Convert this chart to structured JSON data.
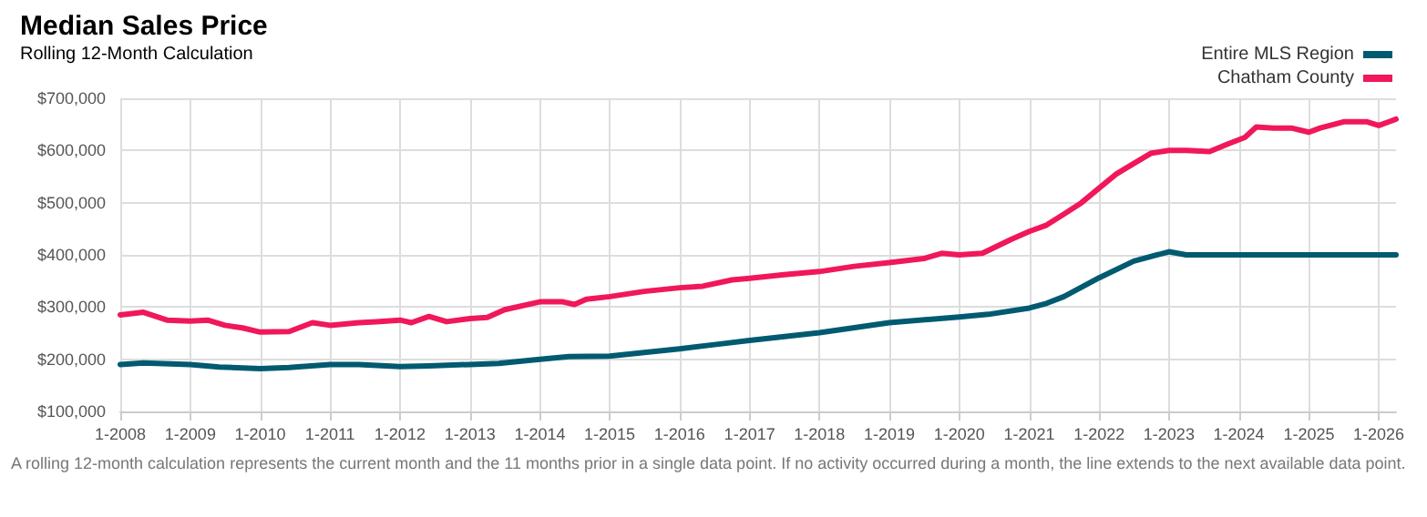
{
  "chart_data": {
    "type": "line",
    "title": "Median Sales Price",
    "subtitle": "Rolling 12-Month Calculation",
    "annotations": [
      "A rolling 12-month calculation represents the current month and the 11 months prior in a single data point. If no activity occurred during a month, the line extends to the next available data point."
    ],
    "legend": "top right",
    "grid": true,
    "marker": "none",
    "line_style": "solid",
    "xlim": [
      "2008-01",
      "2026-04"
    ],
    "xticks": [
      {
        "value": "2008-01",
        "label": "1-2008"
      },
      {
        "value": "2009-01",
        "label": "1-2009"
      },
      {
        "value": "2010-01",
        "label": "1-2010"
      },
      {
        "value": "2011-01",
        "label": "1-2011"
      },
      {
        "value": "2012-01",
        "label": "1-2012"
      },
      {
        "value": "2013-01",
        "label": "1-2013"
      },
      {
        "value": "2014-01",
        "label": "1-2014"
      },
      {
        "value": "2015-01",
        "label": "1-2015"
      },
      {
        "value": "2016-01",
        "label": "1-2016"
      },
      {
        "value": "2017-01",
        "label": "1-2017"
      },
      {
        "value": "2018-01",
        "label": "1-2018"
      },
      {
        "value": "2019-01",
        "label": "1-2019"
      },
      {
        "value": "2020-01",
        "label": "1-2020"
      },
      {
        "value": "2021-01",
        "label": "1-2021"
      },
      {
        "value": "2022-01",
        "label": "1-2022"
      },
      {
        "value": "2023-01",
        "label": "1-2023"
      },
      {
        "value": "2024-01",
        "label": "1-2024"
      },
      {
        "value": "2025-01",
        "label": "1-2025"
      },
      {
        "value": "2026-01",
        "label": "1-2026"
      }
    ],
    "ylim": [
      100000,
      700000
    ],
    "yticks": [
      {
        "value": 100000,
        "label": "$100,000"
      },
      {
        "value": 200000,
        "label": "$200,000"
      },
      {
        "value": 300000,
        "label": "$300,000"
      },
      {
        "value": 400000,
        "label": "$400,000"
      },
      {
        "value": 500000,
        "label": "$500,000"
      },
      {
        "value": 600000,
        "label": "$600,000"
      },
      {
        "value": 700000,
        "label": "$700,000"
      }
    ],
    "series": [
      {
        "name": "Entire MLS Region",
        "color": "#005a70",
        "x": [
          "2008-01",
          "2008-05",
          "2009-01",
          "2009-06",
          "2010-01",
          "2010-06",
          "2011-01",
          "2011-06",
          "2012-01",
          "2012-06",
          "2013-01",
          "2013-06",
          "2014-01",
          "2014-06",
          "2015-01",
          "2015-07",
          "2016-01",
          "2016-07",
          "2017-01",
          "2018-01",
          "2019-01",
          "2020-01",
          "2020-06",
          "2021-01",
          "2021-04",
          "2021-07",
          "2022-01",
          "2022-07",
          "2023-01",
          "2023-04",
          "2024-01",
          "2025-01",
          "2026-04"
        ],
        "values": [
          190000,
          193000,
          190000,
          185000,
          182000,
          184000,
          190000,
          190000,
          186000,
          187000,
          190000,
          192000,
          200000,
          205000,
          206000,
          213000,
          220000,
          228000,
          236000,
          251000,
          270000,
          281000,
          286000,
          298000,
          307000,
          320000,
          356000,
          388000,
          406000,
          400000,
          400000,
          400000,
          400000
        ]
      },
      {
        "name": "Chatham County",
        "color": "#f0185a",
        "x": [
          "2008-01",
          "2008-05",
          "2008-09",
          "2009-01",
          "2009-04",
          "2009-07",
          "2009-10",
          "2010-01",
          "2010-06",
          "2010-10",
          "2011-01",
          "2011-06",
          "2011-09",
          "2012-01",
          "2012-03",
          "2012-06",
          "2012-09",
          "2013-01",
          "2013-04",
          "2013-07",
          "2014-01",
          "2014-05",
          "2014-07",
          "2014-09",
          "2015-01",
          "2015-07",
          "2016-01",
          "2016-05",
          "2016-10",
          "2017-01",
          "2017-07",
          "2018-01",
          "2018-07",
          "2019-01",
          "2019-07",
          "2019-10",
          "2020-01",
          "2020-05",
          "2020-10",
          "2021-01",
          "2021-04",
          "2021-07",
          "2021-10",
          "2022-01",
          "2022-04",
          "2022-07",
          "2022-10",
          "2023-01",
          "2023-04",
          "2023-08",
          "2023-11",
          "2024-02",
          "2024-04",
          "2024-07",
          "2024-10",
          "2025-01",
          "2025-03",
          "2025-07",
          "2025-11",
          "2026-01",
          "2026-04"
        ],
        "values": [
          285000,
          290000,
          275000,
          273000,
          275000,
          265000,
          260000,
          252000,
          253000,
          270000,
          265000,
          270000,
          272000,
          275000,
          270000,
          282000,
          272000,
          278000,
          280000,
          295000,
          310000,
          310000,
          305000,
          315000,
          320000,
          330000,
          337000,
          340000,
          352000,
          355000,
          362000,
          368000,
          378000,
          385000,
          393000,
          403000,
          400000,
          403000,
          430000,
          445000,
          457000,
          478000,
          500000,
          528000,
          555000,
          575000,
          595000,
          600000,
          600000,
          598000,
          612000,
          625000,
          645000,
          643000,
          643000,
          635000,
          643000,
          655000,
          655000,
          648000,
          660000
        ]
      }
    ]
  }
}
